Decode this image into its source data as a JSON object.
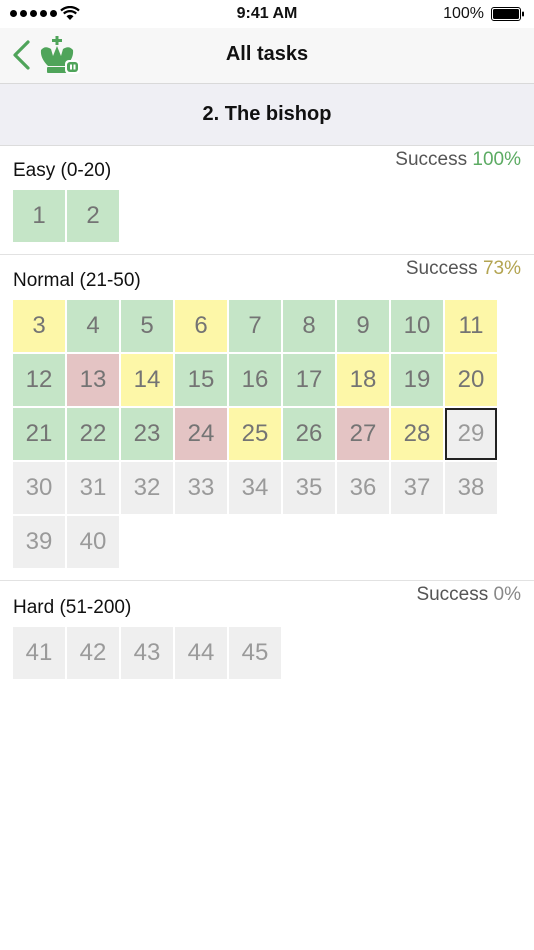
{
  "status": {
    "time": "9:41 AM",
    "battery": "100%"
  },
  "nav": {
    "title": "All tasks",
    "back_icon": "chevron-left-icon",
    "logo_icon": "chess-king-icon"
  },
  "section": {
    "title": "2. The bishop"
  },
  "colors": {
    "accent": "#4fa45a",
    "solved": "#c5e5c7",
    "partial": "#fdf7a8",
    "failed": "#e4c4c4",
    "unsolved": "#efefef"
  },
  "groups": [
    {
      "label": "Easy (0-20)",
      "success_label": "Success",
      "success_value": "100%",
      "tiles": [
        {
          "n": "1",
          "state": "green"
        },
        {
          "n": "2",
          "state": "green"
        }
      ]
    },
    {
      "label": "Normal (21-50)",
      "success_label": "Success",
      "success_value": "73%",
      "tiles": [
        {
          "n": "3",
          "state": "yellow"
        },
        {
          "n": "4",
          "state": "green"
        },
        {
          "n": "5",
          "state": "green"
        },
        {
          "n": "6",
          "state": "yellow"
        },
        {
          "n": "7",
          "state": "green"
        },
        {
          "n": "8",
          "state": "green"
        },
        {
          "n": "9",
          "state": "green"
        },
        {
          "n": "10",
          "state": "green"
        },
        {
          "n": "11",
          "state": "yellow"
        },
        {
          "n": "12",
          "state": "green"
        },
        {
          "n": "13",
          "state": "red"
        },
        {
          "n": "14",
          "state": "yellow"
        },
        {
          "n": "15",
          "state": "green"
        },
        {
          "n": "16",
          "state": "green"
        },
        {
          "n": "17",
          "state": "green"
        },
        {
          "n": "18",
          "state": "yellow"
        },
        {
          "n": "19",
          "state": "green"
        },
        {
          "n": "20",
          "state": "yellow"
        },
        {
          "n": "21",
          "state": "green"
        },
        {
          "n": "22",
          "state": "green"
        },
        {
          "n": "23",
          "state": "green"
        },
        {
          "n": "24",
          "state": "red"
        },
        {
          "n": "25",
          "state": "yellow"
        },
        {
          "n": "26",
          "state": "green"
        },
        {
          "n": "27",
          "state": "red"
        },
        {
          "n": "28",
          "state": "yellow"
        },
        {
          "n": "29",
          "state": "current"
        },
        {
          "n": "30",
          "state": "gray"
        },
        {
          "n": "31",
          "state": "gray"
        },
        {
          "n": "32",
          "state": "gray"
        },
        {
          "n": "33",
          "state": "gray"
        },
        {
          "n": "34",
          "state": "gray"
        },
        {
          "n": "35",
          "state": "gray"
        },
        {
          "n": "36",
          "state": "gray"
        },
        {
          "n": "37",
          "state": "gray"
        },
        {
          "n": "38",
          "state": "gray"
        },
        {
          "n": "39",
          "state": "gray"
        },
        {
          "n": "40",
          "state": "gray"
        }
      ]
    },
    {
      "label": "Hard (51-200)",
      "success_label": "Success",
      "success_value": "0%",
      "tiles": [
        {
          "n": "41",
          "state": "gray"
        },
        {
          "n": "42",
          "state": "gray"
        },
        {
          "n": "43",
          "state": "gray"
        },
        {
          "n": "44",
          "state": "gray"
        },
        {
          "n": "45",
          "state": "gray"
        }
      ]
    }
  ]
}
